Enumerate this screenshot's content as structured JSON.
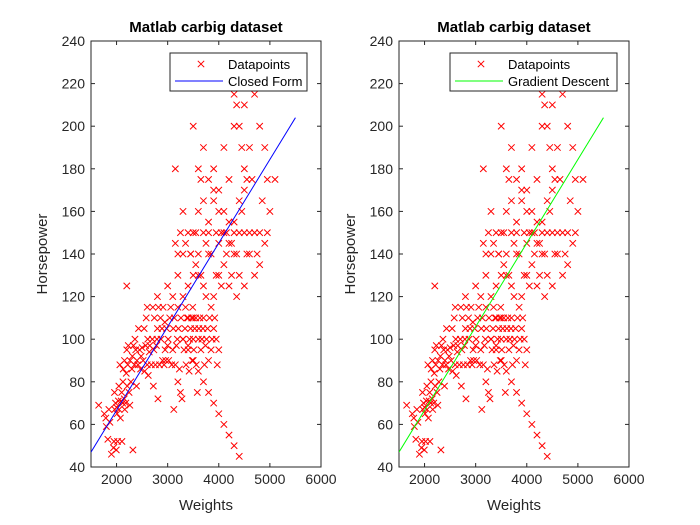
{
  "chart_data": [
    {
      "type": "scatter",
      "title": "Matlab carbig dataset",
      "xlabel": "Weights",
      "ylabel": "Horsepower",
      "xlim": [
        1500,
        6000
      ],
      "ylim": [
        40,
        240
      ],
      "xticks": [
        2000,
        3000,
        4000,
        5000,
        6000
      ],
      "yticks": [
        40,
        60,
        80,
        100,
        120,
        140,
        160,
        180,
        200,
        220,
        240
      ],
      "grid": false,
      "legend_position": "top-right",
      "series": [
        {
          "name": "Datapoints",
          "kind": "markers",
          "marker": "x",
          "color": "#ff0000",
          "points": [
            [
              1650,
              69
            ],
            [
              1760,
              65
            ],
            [
              1790,
              63
            ],
            [
              1800,
              59
            ],
            [
              1830,
              53
            ],
            [
              1850,
              67
            ],
            [
              1870,
              61
            ],
            [
              1900,
              46
            ],
            [
              1940,
              49
            ],
            [
              1950,
              52
            ],
            [
              1960,
              75
            ],
            [
              1965,
              67
            ],
            [
              1980,
              70
            ],
            [
              1995,
              48
            ],
            [
              2000,
              68
            ],
            [
              2010,
              65
            ],
            [
              2020,
              52
            ],
            [
              2035,
              71
            ],
            [
              2045,
              78
            ],
            [
              2050,
              67
            ],
            [
              2065,
              88
            ],
            [
              2075,
              63
            ],
            [
              2090,
              71
            ],
            [
              2100,
              75
            ],
            [
              2105,
              52
            ],
            [
              2120,
              70
            ],
            [
              2125,
              80
            ],
            [
              2130,
              86
            ],
            [
              2150,
              72
            ],
            [
              2155,
              90
            ],
            [
              2160,
              67
            ],
            [
              2180,
              70
            ],
            [
              2190,
              84
            ],
            [
              2200,
              95
            ],
            [
              2210,
              78
            ],
            [
              2220,
              88
            ],
            [
              2230,
              97
            ],
            [
              2245,
              75
            ],
            [
              2260,
              69
            ],
            [
              2265,
              90
            ],
            [
              2280,
              80
            ],
            [
              2300,
              86
            ],
            [
              2310,
              92
            ],
            [
              2320,
              48
            ],
            [
              2330,
              97
            ],
            [
              2350,
              88
            ],
            [
              2360,
              100
            ],
            [
              2375,
              95
            ],
            [
              2390,
              78
            ],
            [
              2400,
              90
            ],
            [
              2420,
              88
            ],
            [
              2430,
              105
            ],
            [
              2450,
              95
            ],
            [
              2470,
              86
            ],
            [
              2480,
              92
            ],
            [
              2500,
              96
            ],
            [
              2520,
              90
            ],
            [
              2540,
              105
            ],
            [
              2550,
              85
            ],
            [
              2570,
              97
            ],
            [
              2580,
              110
            ],
            [
              2600,
              88
            ],
            [
              2610,
              100
            ],
            [
              2620,
              83
            ],
            [
              2640,
              94
            ],
            [
              2650,
              97
            ],
            [
              2680,
              88
            ],
            [
              2700,
              100
            ],
            [
              2710,
              115
            ],
            [
              2720,
              78
            ],
            [
              2730,
              95
            ],
            [
              2740,
              110
            ],
            [
              2760,
              88
            ],
            [
              2780,
              97
            ],
            [
              2790,
              100
            ],
            [
              2800,
              105
            ],
            [
              2810,
              72
            ],
            [
              2820,
              115
            ],
            [
              2840,
              88
            ],
            [
              2860,
              110
            ],
            [
              2870,
              100
            ],
            [
              2890,
              105
            ],
            [
              2900,
              90
            ],
            [
              2910,
              115
            ],
            [
              2930,
              88
            ],
            [
              2945,
              108
            ],
            [
              2950,
              95
            ],
            [
              2960,
              90
            ],
            [
              2980,
              105
            ],
            [
              3000,
              97
            ],
            [
              3010,
              100
            ],
            [
              3020,
              90
            ],
            [
              3040,
              110
            ],
            [
              3060,
              115
            ],
            [
              3080,
              88
            ],
            [
              3100,
              95
            ],
            [
              3110,
              105
            ],
            [
              3120,
              67
            ],
            [
              3130,
              110
            ],
            [
              3150,
              88
            ],
            [
              3170,
              97
            ],
            [
              3190,
              100
            ],
            [
              3200,
              80
            ],
            [
              3210,
              105
            ],
            [
              3230,
              86
            ],
            [
              3250,
              75
            ],
            [
              3260,
              110
            ],
            [
              3280,
              72
            ],
            [
              3300,
              100
            ],
            [
              3320,
              95
            ],
            [
              3340,
              105
            ],
            [
              3350,
              115
            ],
            [
              3360,
              88
            ],
            [
              3380,
              110
            ],
            [
              3400,
              97
            ],
            [
              3420,
              85
            ],
            [
              3430,
              100
            ],
            [
              3450,
              105
            ],
            [
              3470,
              110
            ],
            [
              3480,
              90
            ],
            [
              3490,
              115
            ],
            [
              3500,
              100
            ],
            [
              3510,
              95
            ],
            [
              3530,
              105
            ],
            [
              3550,
              110
            ],
            [
              3560,
              88
            ],
            [
              3580,
              75
            ],
            [
              3600,
              100
            ],
            [
              3610,
              105
            ],
            [
              3630,
              110
            ],
            [
              3650,
              95
            ],
            [
              3670,
              100
            ],
            [
              3690,
              105
            ],
            [
              3700,
              110
            ],
            [
              3720,
              88
            ],
            [
              3740,
              97
            ],
            [
              3760,
              100
            ],
            [
              3780,
              105
            ],
            [
              3800,
              90
            ],
            [
              3820,
              110
            ],
            [
              3850,
              95
            ],
            [
              3870,
              100
            ],
            [
              3900,
              105
            ],
            [
              3920,
              110
            ],
            [
              3950,
              100
            ],
            [
              3970,
              88
            ],
            [
              4000,
              95
            ],
            [
              3150,
              180
            ],
            [
              3150,
              145
            ],
            [
              3200,
              140
            ],
            [
              3250,
              150
            ],
            [
              3300,
              160
            ],
            [
              3350,
              145
            ],
            [
              3400,
              150
            ],
            [
              3450,
              140
            ],
            [
              3500,
              130
            ],
            [
              3550,
              150
            ],
            [
              3600,
              140
            ],
            [
              3650,
              175
            ],
            [
              3700,
              150
            ],
            [
              3750,
              145
            ],
            [
              3800,
              150
            ],
            [
              3850,
              140
            ],
            [
              3900,
              165
            ],
            [
              3950,
              150
            ],
            [
              4000,
              145
            ],
            [
              4050,
              150
            ],
            [
              4100,
              160
            ],
            [
              4150,
              150
            ],
            [
              4200,
              155
            ],
            [
              4250,
              145
            ],
            [
              4300,
              150
            ],
            [
              4350,
              140
            ],
            [
              4400,
              150
            ],
            [
              4450,
              160
            ],
            [
              4500,
              150
            ],
            [
              4550,
              140
            ],
            [
              4600,
              150
            ],
            [
              4650,
              175
            ],
            [
              4700,
              150
            ],
            [
              4750,
              140
            ],
            [
              4800,
              150
            ],
            [
              4850,
              165
            ],
            [
              4900,
              145
            ],
            [
              4950,
              150
            ],
            [
              5000,
              160
            ],
            [
              5100,
              175
            ],
            [
              3500,
              200
            ],
            [
              3600,
              180
            ],
            [
              3700,
              190
            ],
            [
              3800,
              175
            ],
            [
              3900,
              180
            ],
            [
              4000,
              170
            ],
            [
              4100,
              190
            ],
            [
              4200,
              175
            ],
            [
              4300,
              200
            ],
            [
              4350,
              210
            ],
            [
              4400,
              200
            ],
            [
              4450,
              190
            ],
            [
              4500,
              180
            ],
            [
              4550,
              175
            ],
            [
              4600,
              190
            ],
            [
              4700,
              215
            ],
            [
              4750,
              220
            ],
            [
              4800,
              200
            ],
            [
              4900,
              190
            ],
            [
              4950,
              175
            ],
            [
              4300,
              215
            ],
            [
              4380,
              220
            ],
            [
              4650,
              225
            ],
            [
              4500,
              210
            ],
            [
              3300,
              120
            ],
            [
              3400,
              125
            ],
            [
              3500,
              110
            ],
            [
              3600,
              130
            ],
            [
              3700,
              125
            ],
            [
              3800,
              140
            ],
            [
              3900,
              120
            ],
            [
              4000,
              130
            ],
            [
              4100,
              135
            ],
            [
              4200,
              125
            ],
            [
              4300,
              140
            ],
            [
              4400,
              130
            ],
            [
              4500,
              125
            ],
            [
              4600,
              140
            ],
            [
              4700,
              130
            ],
            [
              4800,
              135
            ],
            [
              3450,
              140
            ],
            [
              3550,
              135
            ],
            [
              3650,
              130
            ],
            [
              3750,
              120
            ],
            [
              3850,
              115
            ],
            [
              3950,
              130
            ],
            [
              4050,
              125
            ],
            [
              4150,
              140
            ],
            [
              4250,
              130
            ],
            [
              4350,
              120
            ],
            [
              3200,
              130
            ],
            [
              3300,
              140
            ],
            [
              3400,
              110
            ],
            [
              3500,
              150
            ],
            [
              3600,
              160
            ],
            [
              3700,
              165
            ],
            [
              3800,
              155
            ],
            [
              3900,
              170
            ],
            [
              4000,
              160
            ],
            [
              4100,
              150
            ],
            [
              4200,
              145
            ],
            [
              4300,
              155
            ],
            [
              4400,
              165
            ],
            [
              4500,
              170
            ],
            [
              2200,
              125
            ],
            [
              2600,
              115
            ],
            [
              2800,
              120
            ],
            [
              3000,
              125
            ],
            [
              3100,
              120
            ],
            [
              3200,
              115
            ],
            [
              3300,
              100
            ],
            [
              3400,
              95
            ],
            [
              3500,
              90
            ],
            [
              3600,
              85
            ],
            [
              3700,
              80
            ],
            [
              3800,
              75
            ],
            [
              3900,
              70
            ],
            [
              4000,
              65
            ],
            [
              4100,
              60
            ],
            [
              4200,
              55
            ],
            [
              4300,
              50
            ],
            [
              4400,
              45
            ]
          ]
        },
        {
          "name": "Closed Form",
          "kind": "line",
          "color": "#0000ff",
          "x": [
            1500,
            5500
          ],
          "y": [
            47,
            204
          ]
        }
      ]
    },
    {
      "type": "scatter",
      "title": "Matlab carbig dataset",
      "xlabel": "Weights",
      "ylabel": "Horsepower",
      "xlim": [
        1500,
        6000
      ],
      "ylim": [
        40,
        240
      ],
      "xticks": [
        2000,
        3000,
        4000,
        5000,
        6000
      ],
      "yticks": [
        40,
        60,
        80,
        100,
        120,
        140,
        160,
        180,
        200,
        220,
        240
      ],
      "grid": false,
      "legend_position": "top-right",
      "series": [
        {
          "name": "Datapoints",
          "kind": "markers",
          "marker": "x",
          "color": "#ff0000",
          "points_ref": 0
        },
        {
          "name": "Gradient Descent",
          "kind": "line",
          "color": "#00ff00",
          "x": [
            1500,
            5500
          ],
          "y": [
            47,
            204
          ]
        }
      ]
    }
  ]
}
